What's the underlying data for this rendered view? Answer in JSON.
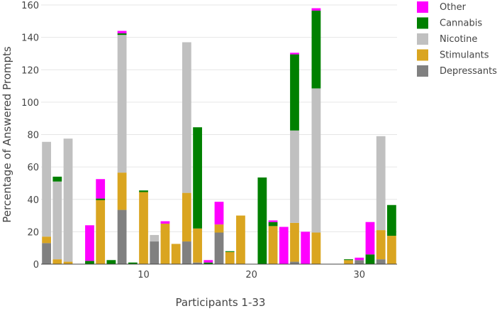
{
  "chart_data": {
    "type": "bar",
    "stacked": true,
    "xlabel": "Participants 1-33",
    "ylabel": "Percentage of Answered Prompts",
    "ylim": [
      0,
      160
    ],
    "yticks": [
      0,
      20,
      40,
      60,
      80,
      100,
      120,
      140,
      160
    ],
    "xticks": [
      10,
      20,
      30
    ],
    "grid": true,
    "legend_position": "top-right",
    "x": [
      1,
      2,
      3,
      4,
      5,
      6,
      7,
      8,
      9,
      10,
      11,
      12,
      13,
      14,
      15,
      16,
      17,
      18,
      19,
      20,
      21,
      22,
      23,
      24,
      25,
      26,
      27,
      28,
      29,
      30,
      31,
      32,
      33
    ],
    "series": [
      {
        "name": "Depressants",
        "color": "#808080",
        "values": [
          13,
          0,
          0,
          0,
          0,
          0,
          0,
          33.5,
          0,
          0,
          14,
          0,
          0,
          14,
          1,
          0,
          19.5,
          0,
          0,
          0,
          0,
          0,
          0,
          1.5,
          0,
          0,
          0,
          0,
          0,
          2.5,
          0,
          3,
          0
        ]
      },
      {
        "name": "Stimulants",
        "color": "#DAA520",
        "values": [
          4,
          3,
          1.5,
          0,
          0,
          39.5,
          0,
          23,
          0,
          44.5,
          0,
          25,
          12.5,
          30,
          21,
          0,
          5,
          7.5,
          30,
          0,
          0,
          23.5,
          0,
          24,
          0,
          19.5,
          0,
          0,
          2.5,
          0,
          0,
          18,
          17.5
        ]
      },
      {
        "name": "Nicotine",
        "color": "#C0C0C0",
        "values": [
          58.5,
          48,
          76,
          0,
          0,
          0,
          0,
          85,
          0,
          0,
          4,
          0,
          0,
          93,
          0,
          0,
          0,
          0,
          0,
          0,
          0,
          0,
          0,
          57,
          0,
          89,
          0,
          0,
          0,
          0,
          0,
          58,
          0
        ]
      },
      {
        "name": "Cannabis",
        "color": "#008000",
        "values": [
          0,
          3,
          0,
          0,
          2,
          1,
          2.5,
          1,
          1,
          1,
          0,
          0,
          0,
          0,
          62.5,
          1,
          0,
          0.5,
          0,
          0,
          53.5,
          2.5,
          0,
          47,
          0,
          48,
          0,
          0,
          0.5,
          0,
          6,
          0,
          19
        ]
      },
      {
        "name": "Other",
        "color": "#FF00FF",
        "values": [
          0,
          0,
          0,
          0,
          22,
          12,
          0,
          1.5,
          0,
          0,
          0,
          1.5,
          0,
          0,
          0,
          1.5,
          14,
          0,
          0,
          0,
          0,
          1,
          23,
          1,
          20,
          1.5,
          0,
          0,
          0,
          1.5,
          20,
          0,
          0
        ]
      }
    ],
    "legend_order": [
      "Other",
      "Cannabis",
      "Nicotine",
      "Stimulants",
      "Depressants"
    ]
  }
}
